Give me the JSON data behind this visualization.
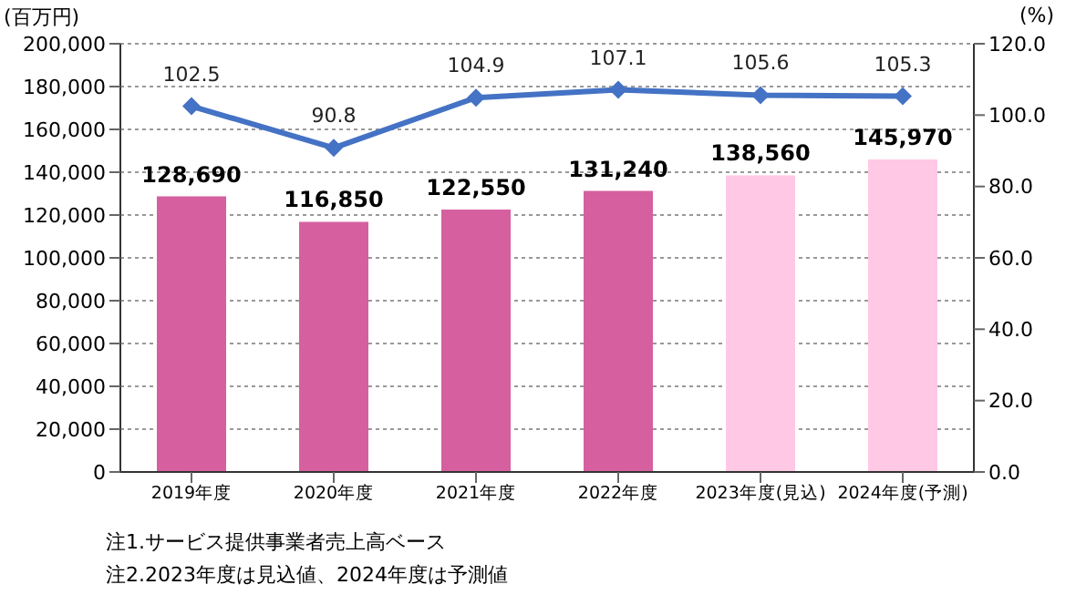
{
  "chart_data": {
    "type": "bar",
    "ylabel": "(百万円)",
    "y2label": "(%)",
    "categories": [
      "2019年度",
      "2020年度",
      "2021年度",
      "2022年度",
      "2023年度(見込)",
      "2024年度(予測)"
    ],
    "series": [
      {
        "colors": [
          "#d6609f",
          "#d6609f",
          "#d6609f",
          "#d6609f",
          "#ffc8e4",
          "#ffc8e4"
        ],
        "values": [
          128690,
          116850,
          122550,
          131240,
          138560,
          145970
        ],
        "value_labels": [
          "128,690",
          "116,850",
          "122,550",
          "131,240",
          "138,560",
          "145,970"
        ]
      },
      {
        "type": "line",
        "axis": "y2",
        "color": "#4472c4",
        "values": [
          102.5,
          90.8,
          104.9,
          107.1,
          105.6,
          105.3
        ],
        "marker": "diamond"
      }
    ],
    "data_labels": true,
    "grid": "y",
    "line_style": "solid",
    "ylim": [
      0,
      200000
    ],
    "yticks": [
      {
        "value": 0,
        "label": "0"
      },
      {
        "value": 20000,
        "label": "20,000"
      },
      {
        "value": 40000,
        "label": "40,000"
      },
      {
        "value": 60000,
        "label": "60,000"
      },
      {
        "value": 80000,
        "label": "80,000"
      },
      {
        "value": 100000,
        "label": "100,000"
      },
      {
        "value": 120000,
        "label": "120,000"
      },
      {
        "value": 140000,
        "label": "140,000"
      },
      {
        "value": 160000,
        "label": "160,000"
      },
      {
        "value": 180000,
        "label": "180,000"
      },
      {
        "value": 200000,
        "label": "200,000"
      }
    ],
    "y2lim": [
      0,
      120
    ],
    "y2ticks": [
      {
        "value": 0,
        "label": "0.0"
      },
      {
        "value": 20,
        "label": "20.0"
      },
      {
        "value": 40,
        "label": "40.0"
      },
      {
        "value": 60,
        "label": "60.0"
      },
      {
        "value": 80,
        "label": "80.0"
      },
      {
        "value": 100,
        "label": "100.0"
      },
      {
        "value": 120,
        "label": "120.0"
      }
    ],
    "annotations": [
      "注1.サービス提供事業者売上高ベース",
      "注2.2023年度は見込値、2024年度は予測値"
    ]
  }
}
